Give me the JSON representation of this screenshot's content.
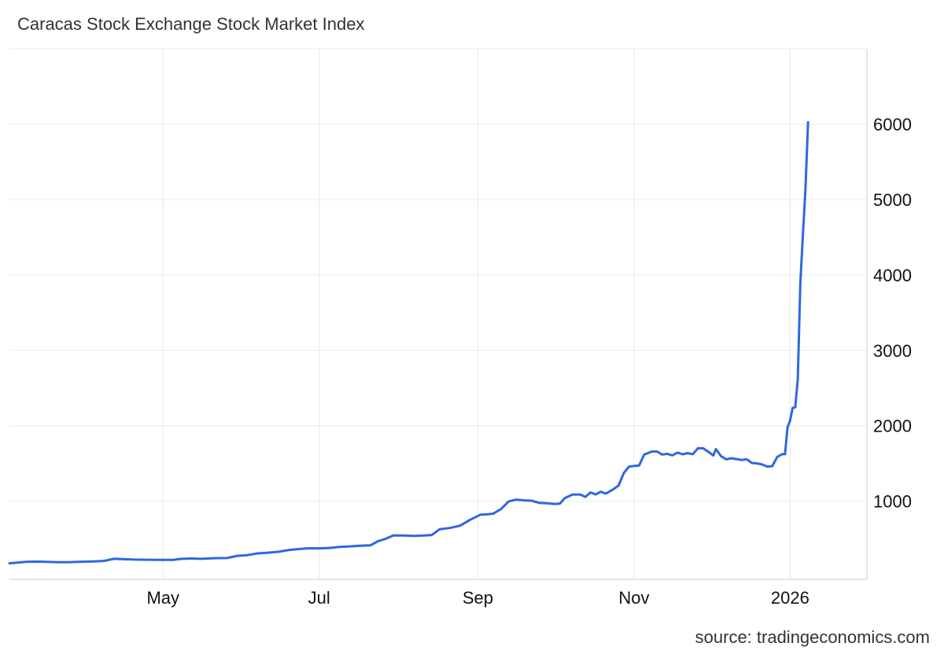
{
  "chart": {
    "title": "Caracas Stock Exchange Stock Market Index",
    "source": "source: tradingeconomics.com"
  },
  "colors": {
    "line": "#2f67e0",
    "grid": "#e6e9ee",
    "axis": "#c9ced6",
    "text": "#111111"
  },
  "chart_data": {
    "type": "line",
    "title": "Caracas Stock Exchange Stock Market Index",
    "xlabel": "",
    "ylabel": "",
    "x_tick_labels": [
      "May",
      "Jul",
      "Sep",
      "Nov",
      "2026"
    ],
    "y_tick_labels": [
      "1000",
      "2000",
      "3000",
      "4000",
      "5000",
      "6000"
    ],
    "xlim": [
      "2025-03-02",
      "2026-01-31"
    ],
    "ylim": [
      -35,
      7000
    ],
    "grid": true,
    "legend": "none",
    "series": [
      {
        "name": "",
        "points": [
          [
            "2025-03-02",
            178
          ],
          [
            "2025-03-05",
            186
          ],
          [
            "2025-03-09",
            198
          ],
          [
            "2025-03-14",
            200
          ],
          [
            "2025-03-20",
            193
          ],
          [
            "2025-03-25",
            192
          ],
          [
            "2025-03-30",
            198
          ],
          [
            "2025-04-04",
            202
          ],
          [
            "2025-04-08",
            210
          ],
          [
            "2025-04-12",
            237
          ],
          [
            "2025-04-16",
            232
          ],
          [
            "2025-04-20",
            227
          ],
          [
            "2025-04-25",
            225
          ],
          [
            "2025-04-30",
            222
          ],
          [
            "2025-05-05",
            223
          ],
          [
            "2025-05-08",
            236
          ],
          [
            "2025-05-12",
            241
          ],
          [
            "2025-05-16",
            237
          ],
          [
            "2025-05-21",
            245
          ],
          [
            "2025-05-26",
            247
          ],
          [
            "2025-05-30",
            277
          ],
          [
            "2025-06-03",
            286
          ],
          [
            "2025-06-07",
            309
          ],
          [
            "2025-06-11",
            318
          ],
          [
            "2025-06-15",
            330
          ],
          [
            "2025-06-19",
            353
          ],
          [
            "2025-06-23",
            366
          ],
          [
            "2025-06-27",
            377
          ],
          [
            "2025-07-01",
            376
          ],
          [
            "2025-07-05",
            381
          ],
          [
            "2025-07-09",
            394
          ],
          [
            "2025-07-13",
            402
          ],
          [
            "2025-07-17",
            410
          ],
          [
            "2025-07-21",
            415
          ],
          [
            "2025-07-24",
            470
          ],
          [
            "2025-07-27",
            503
          ],
          [
            "2025-07-30",
            548
          ],
          [
            "2025-08-03",
            545
          ],
          [
            "2025-08-07",
            540
          ],
          [
            "2025-08-11",
            545
          ],
          [
            "2025-08-14",
            553
          ],
          [
            "2025-08-17",
            628
          ],
          [
            "2025-08-21",
            646
          ],
          [
            "2025-08-25",
            676
          ],
          [
            "2025-08-29",
            755
          ],
          [
            "2025-09-02",
            822
          ],
          [
            "2025-09-05",
            827
          ],
          [
            "2025-09-07",
            836
          ],
          [
            "2025-09-10",
            895
          ],
          [
            "2025-09-13",
            998
          ],
          [
            "2025-09-16",
            1022
          ],
          [
            "2025-09-19",
            1012
          ],
          [
            "2025-09-22",
            1007
          ],
          [
            "2025-09-25",
            979
          ],
          [
            "2025-09-28",
            974
          ],
          [
            "2025-10-01",
            965
          ],
          [
            "2025-10-03",
            969
          ],
          [
            "2025-10-05",
            1043
          ],
          [
            "2025-10-08",
            1090
          ],
          [
            "2025-10-11",
            1090
          ],
          [
            "2025-10-13",
            1058
          ],
          [
            "2025-10-15",
            1117
          ],
          [
            "2025-10-17",
            1091
          ],
          [
            "2025-10-19",
            1126
          ],
          [
            "2025-10-21",
            1102
          ],
          [
            "2025-10-24",
            1160
          ],
          [
            "2025-10-26",
            1210
          ],
          [
            "2025-10-28",
            1373
          ],
          [
            "2025-10-30",
            1459
          ],
          [
            "2025-11-01",
            1468
          ],
          [
            "2025-11-03",
            1473
          ],
          [
            "2025-11-05",
            1619
          ],
          [
            "2025-11-08",
            1660
          ],
          [
            "2025-11-10",
            1660
          ],
          [
            "2025-11-12",
            1619
          ],
          [
            "2025-11-14",
            1628
          ],
          [
            "2025-11-16",
            1609
          ],
          [
            "2025-11-18",
            1645
          ],
          [
            "2025-11-20",
            1623
          ],
          [
            "2025-11-22",
            1638
          ],
          [
            "2025-11-24",
            1624
          ],
          [
            "2025-11-26",
            1702
          ],
          [
            "2025-11-28",
            1702
          ],
          [
            "2025-11-30",
            1657
          ],
          [
            "2025-12-02",
            1608
          ],
          [
            "2025-12-03",
            1691
          ],
          [
            "2025-12-05",
            1599
          ],
          [
            "2025-12-07",
            1555
          ],
          [
            "2025-12-09",
            1570
          ],
          [
            "2025-12-11",
            1560
          ],
          [
            "2025-12-13",
            1547
          ],
          [
            "2025-12-15",
            1557
          ],
          [
            "2025-12-17",
            1507
          ],
          [
            "2025-12-19",
            1502
          ],
          [
            "2025-12-21",
            1489
          ],
          [
            "2025-12-23",
            1461
          ],
          [
            "2025-12-25",
            1465
          ],
          [
            "2025-12-27",
            1589
          ],
          [
            "2025-12-29",
            1625
          ],
          [
            "2025-12-30",
            1625
          ],
          [
            "2025-12-31",
            1981
          ],
          [
            "2026-01-01",
            2072
          ],
          [
            "2026-01-02",
            2239
          ],
          [
            "2026-01-03",
            2244
          ],
          [
            "2026-01-04",
            2615
          ],
          [
            "2026-01-05",
            3897
          ],
          [
            "2026-01-06",
            4543
          ],
          [
            "2026-01-07",
            5142
          ],
          [
            "2026-01-08",
            6027
          ]
        ]
      }
    ]
  }
}
